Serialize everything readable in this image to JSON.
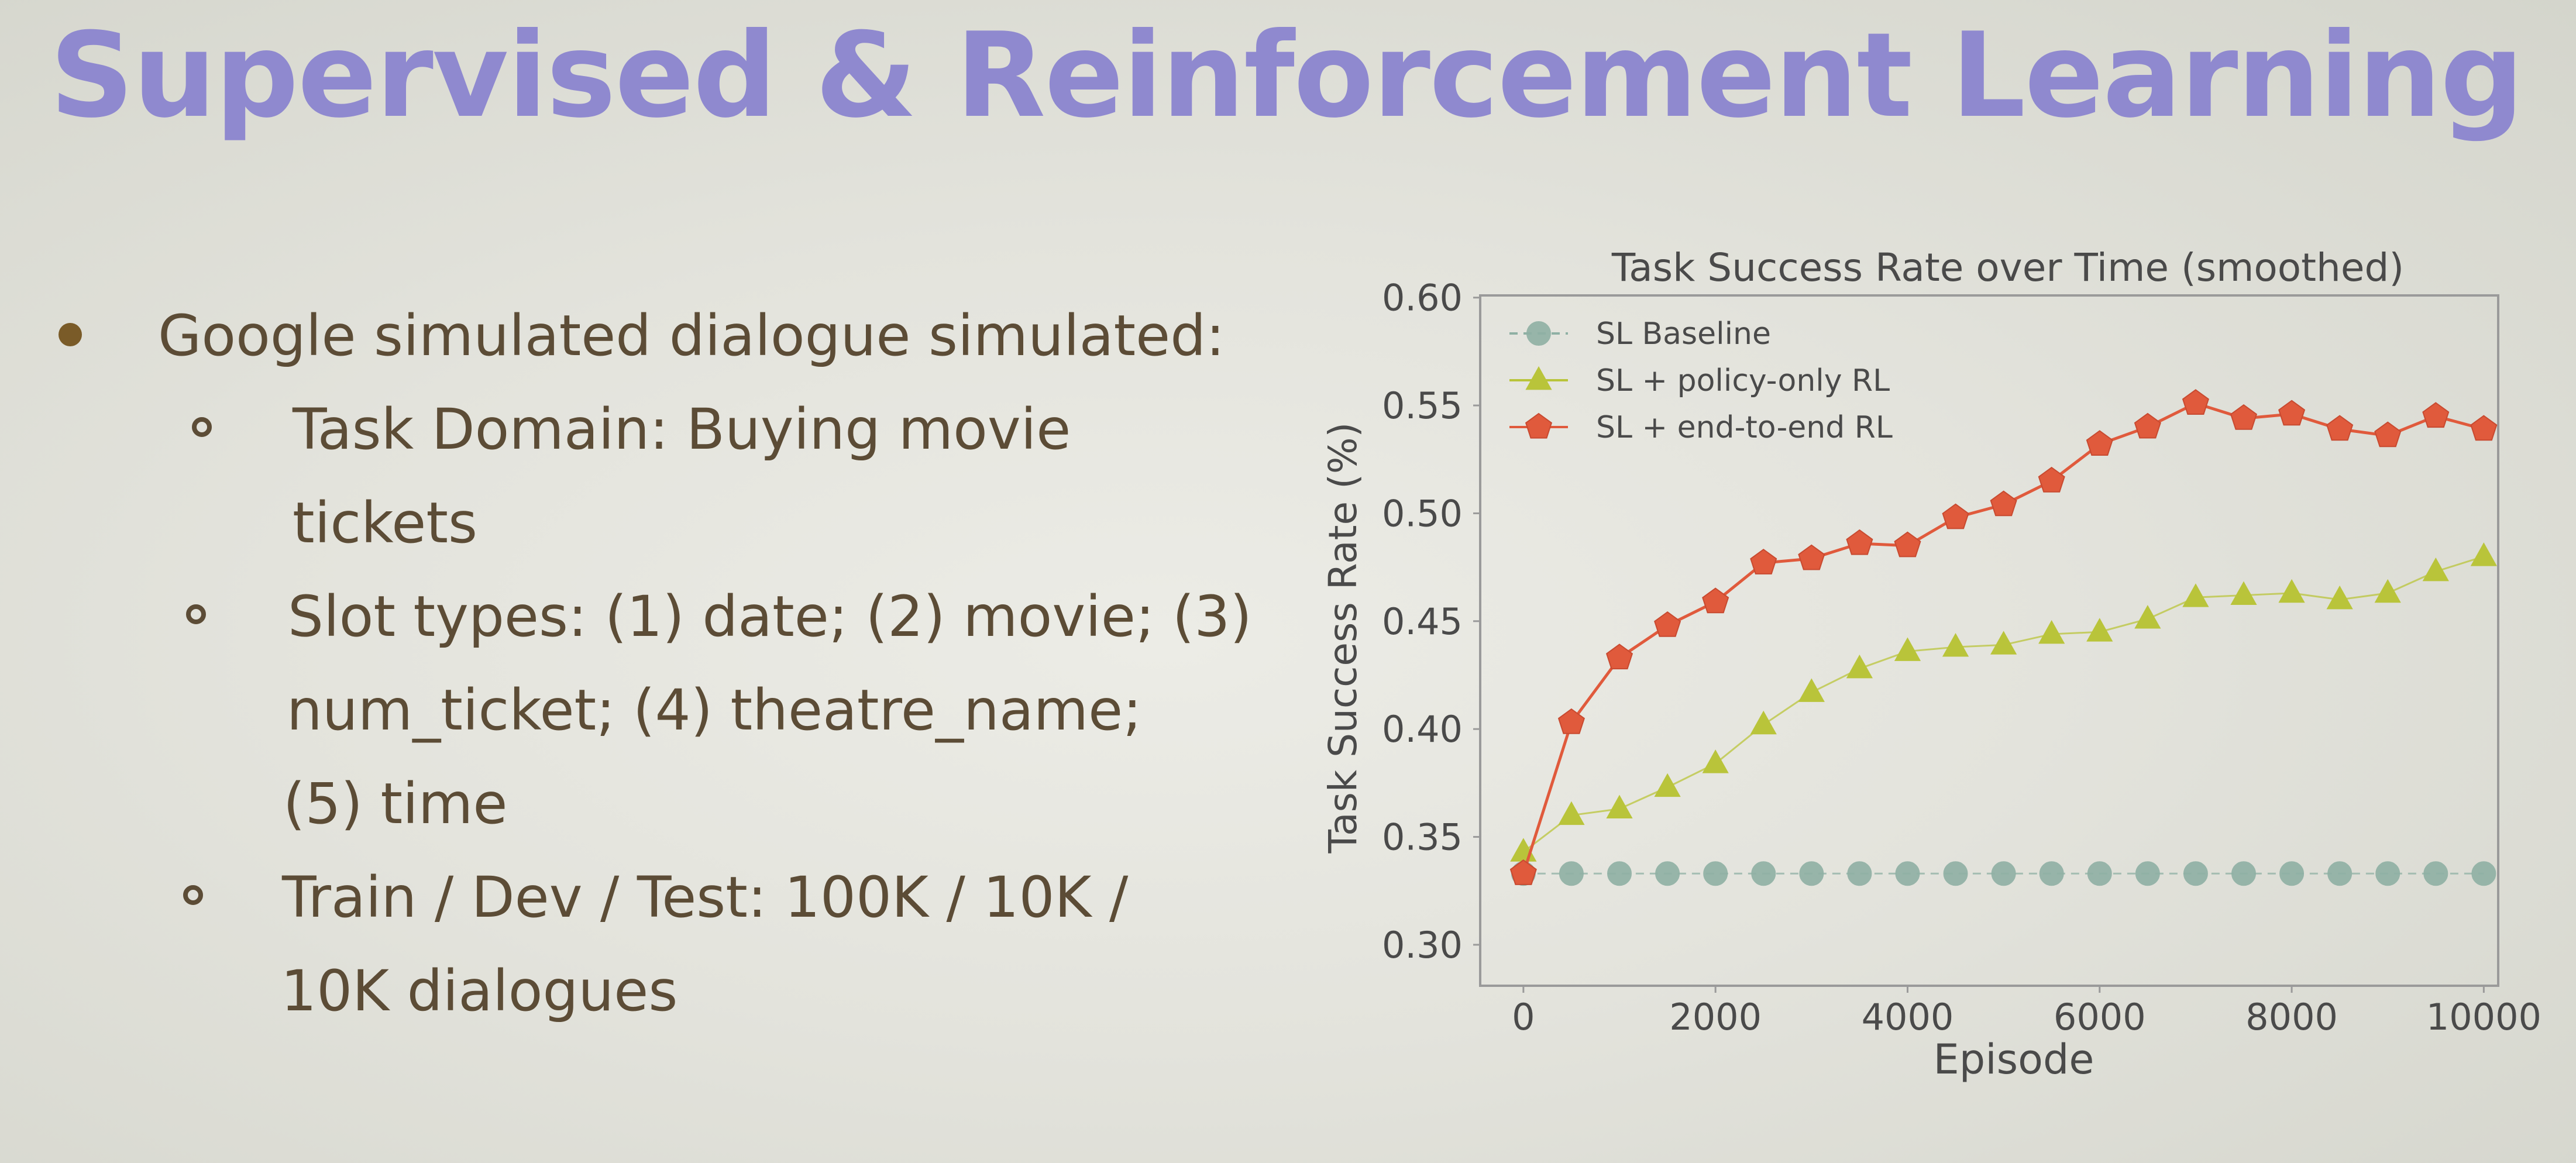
{
  "slide": {
    "title": "Supervised & Reinforcement Learning",
    "bullets": [
      {
        "level": 1,
        "lines": [
          "Google simulated dialogue simulated:"
        ]
      },
      {
        "level": 2,
        "lines": [
          "Task Domain: Buying movie",
          "tickets"
        ]
      },
      {
        "level": 2,
        "lines": [
          "Slot types: (1) date; (2) movie; (3)",
          "num_ticket; (4) theatre_name;",
          "(5) time"
        ]
      },
      {
        "level": 2,
        "lines": [
          "Train / Dev / Test: 100K / 10K /",
          "10K dialogues"
        ]
      }
    ]
  },
  "colors": {
    "title": "#8f89cf",
    "text": "#5c4c36",
    "bullet": "#7a5b28",
    "sl_baseline": "#8fb0a4",
    "policy_only": "#b9c43a",
    "end_to_end": "#e05a3c"
  },
  "chart_data": {
    "type": "line",
    "title": "Task Success Rate over Time (smoothed)",
    "xlabel": "Episode",
    "ylabel": "Task Success Rate (%)",
    "xlim": [
      -450,
      10150
    ],
    "ylim": [
      0.281,
      0.601
    ],
    "xticks": [
      0,
      2000,
      4000,
      6000,
      8000,
      10000
    ],
    "yticks": [
      0.3,
      0.35,
      0.4,
      0.45,
      0.5,
      0.55,
      0.6
    ],
    "ytick_labels": [
      "0.30",
      "0.35",
      "0.40",
      "0.45",
      "0.50",
      "0.55",
      "0.60"
    ],
    "legend_position": "top-left",
    "grid": false,
    "x": [
      0,
      500,
      1000,
      1500,
      2000,
      2500,
      3000,
      3500,
      4000,
      4500,
      5000,
      5500,
      6000,
      6500,
      7000,
      7500,
      8000,
      8500,
      9000,
      9500,
      10000
    ],
    "series": [
      {
        "name": "SL Baseline",
        "marker": "circle",
        "color": "#8fb0a4",
        "values": [
          0.333,
          0.333,
          0.333,
          0.333,
          0.333,
          0.333,
          0.333,
          0.333,
          0.333,
          0.333,
          0.333,
          0.333,
          0.333,
          0.333,
          0.333,
          0.333,
          0.333,
          0.333,
          0.333,
          0.333,
          0.333
        ]
      },
      {
        "name": "SL + policy-only RL",
        "marker": "triangle",
        "color": "#b9c43a",
        "values": [
          0.343,
          0.36,
          0.363,
          0.373,
          0.384,
          0.402,
          0.417,
          0.428,
          0.436,
          0.438,
          0.439,
          0.444,
          0.445,
          0.451,
          0.461,
          0.462,
          0.463,
          0.46,
          0.463,
          0.473,
          0.48
        ]
      },
      {
        "name": "SL + end-to-end RL",
        "marker": "pentagon",
        "color": "#e05a3c",
        "values": [
          0.333,
          0.403,
          0.433,
          0.448,
          0.459,
          0.477,
          0.479,
          0.486,
          0.485,
          0.498,
          0.504,
          0.515,
          0.532,
          0.54,
          0.551,
          0.544,
          0.546,
          0.539,
          0.536,
          0.545,
          0.539
        ]
      }
    ]
  }
}
